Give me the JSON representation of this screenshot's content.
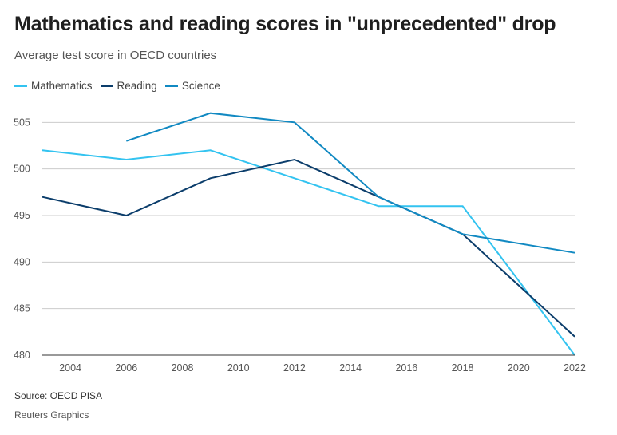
{
  "header": {
    "title": "Mathematics and reading scores in \"unprecedented\" drop",
    "subtitle": "Average test score in OECD countries"
  },
  "footer": {
    "source": "Source: OECD PISA",
    "credit": "Reuters Graphics"
  },
  "colors": {
    "mathematics": "#33c3f0",
    "reading": "#0b3d6b",
    "science": "#1189c2",
    "grid": "#cccccc",
    "axis": "#333333"
  },
  "chart_data": {
    "type": "line",
    "title": "Mathematics and reading scores in \"unprecedented\" drop",
    "subtitle": "Average test score in OECD countries",
    "xlabel": "",
    "ylabel": "",
    "xlim": [
      2003,
      2022
    ],
    "ylim": [
      480,
      507
    ],
    "xticks": [
      2004,
      2006,
      2008,
      2010,
      2012,
      2014,
      2016,
      2018,
      2020,
      2022
    ],
    "yticks": [
      480,
      485,
      490,
      495,
      500,
      505
    ],
    "grid": "horizontal",
    "legend": "top-left",
    "series": [
      {
        "name": "Mathematics",
        "color": "#33c3f0",
        "x": [
          2003,
          2006,
          2009,
          2012,
          2015,
          2018,
          2022
        ],
        "y": [
          502,
          501,
          502,
          499,
          496,
          496,
          480
        ]
      },
      {
        "name": "Reading",
        "color": "#0b3d6b",
        "x": [
          2003,
          2006,
          2009,
          2012,
          2015,
          2018,
          2022
        ],
        "y": [
          497,
          495,
          499,
          501,
          497,
          493,
          482
        ]
      },
      {
        "name": "Science",
        "color": "#1189c2",
        "x": [
          2006,
          2009,
          2012,
          2015,
          2018,
          2022
        ],
        "y": [
          503,
          506,
          505,
          497,
          493,
          491
        ]
      }
    ]
  }
}
